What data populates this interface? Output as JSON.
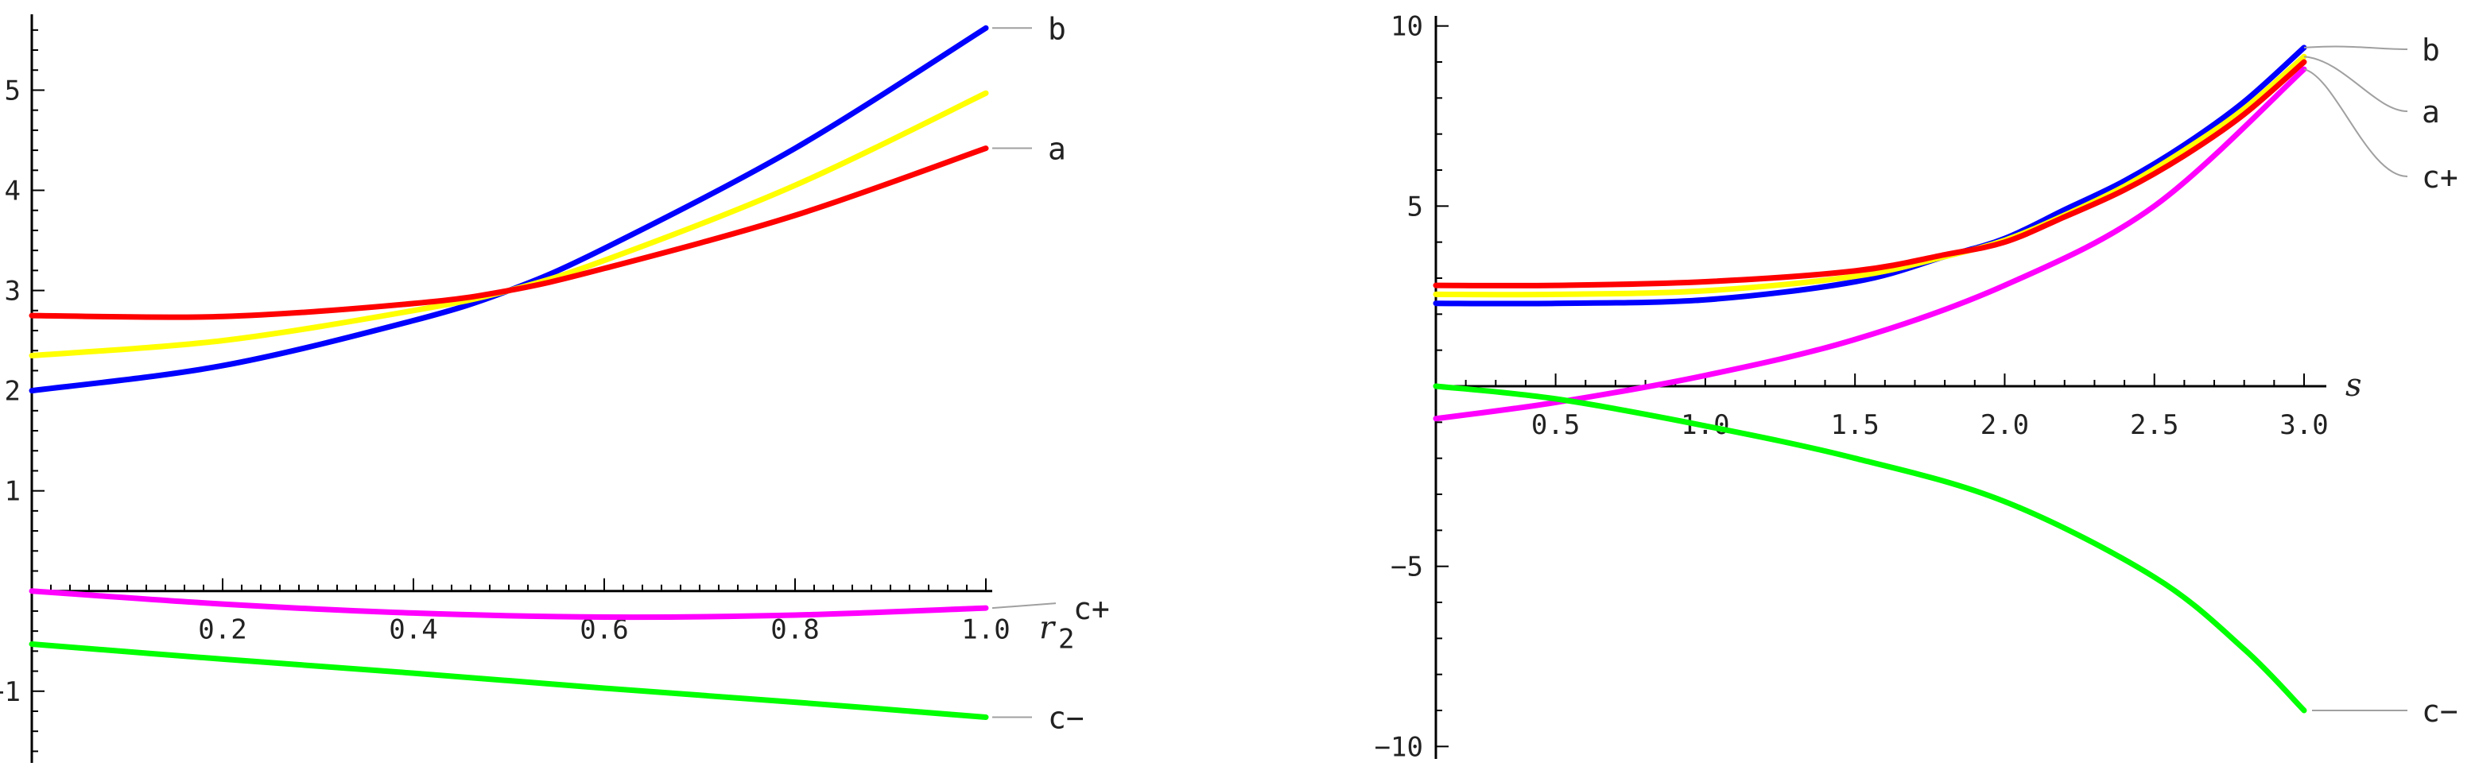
{
  "chart_data": [
    {
      "type": "line",
      "title": "",
      "xlabel": "r",
      "xlabel_sub": "2",
      "ylabel": "",
      "xlim": [
        0,
        1.0
      ],
      "ylim": [
        -1.7,
        5.9
      ],
      "grid": false,
      "x_ticks": [
        "0.2",
        "0.4",
        "0.6",
        "0.8",
        "1.0"
      ],
      "y_ticks": [
        "-1",
        "1",
        "2",
        "3",
        "4",
        "5"
      ],
      "series": [
        {
          "name": "b",
          "color": "#0000ff",
          "x": [
            0,
            0.2,
            0.4,
            0.5,
            0.6,
            0.8,
            1.0
          ],
          "y": [
            2.0,
            2.25,
            2.7,
            3.0,
            3.42,
            4.42,
            5.62
          ]
        },
        {
          "color": "#ffff00",
          "x": [
            0,
            0.2,
            0.4,
            0.5,
            0.6,
            0.8,
            1.0
          ],
          "y": [
            2.35,
            2.5,
            2.8,
            3.0,
            3.3,
            4.05,
            4.97
          ]
        },
        {
          "name": "a",
          "color": "#ff0000",
          "x": [
            0,
            0.2,
            0.4,
            0.5,
            0.6,
            0.8,
            1.0
          ],
          "y": [
            2.75,
            2.74,
            2.87,
            3.0,
            3.22,
            3.75,
            4.42
          ]
        },
        {
          "name": "c+",
          "color": "#ff00ff",
          "x": [
            0,
            0.2,
            0.4,
            0.6,
            0.8,
            1.0
          ],
          "y": [
            0.0,
            -0.13,
            -0.22,
            -0.26,
            -0.24,
            -0.17
          ]
        },
        {
          "name": "c−",
          "color": "#00ff00",
          "x": [
            0,
            0.2,
            0.4,
            0.6,
            0.8,
            1.0
          ],
          "y": [
            -0.53,
            -0.68,
            -0.82,
            -0.97,
            -1.11,
            -1.26
          ]
        }
      ],
      "labels": {
        "b": "b",
        "a": "a",
        "cplus": "c+",
        "cminus": "c−"
      }
    },
    {
      "type": "line",
      "title": "",
      "xlabel": "s",
      "ylabel": "",
      "xlim": [
        0.1,
        3.0
      ],
      "ylim": [
        -10.5,
        10.5
      ],
      "grid": false,
      "x_ticks": [
        "0.5",
        "1.0",
        "1.5",
        "2.0",
        "2.5",
        "3.0"
      ],
      "y_ticks": [
        "10",
        "5",
        "-5",
        "-10"
      ],
      "series": [
        {
          "name": "b",
          "color": "#0000ff",
          "x": [
            0.1,
            0.5,
            1.0,
            1.5,
            1.8,
            2.0,
            2.2,
            2.4,
            2.6,
            2.8,
            3.0
          ],
          "y": [
            2.3,
            2.3,
            2.4,
            2.9,
            3.6,
            4.1,
            4.9,
            5.7,
            6.7,
            7.9,
            9.4
          ]
        },
        {
          "color": "#ffff00",
          "x": [
            0.1,
            0.5,
            1.0,
            1.5,
            1.8,
            2.0,
            2.2,
            2.4,
            2.6,
            2.8,
            3.0
          ],
          "y": [
            2.55,
            2.55,
            2.65,
            3.05,
            3.6,
            4.05,
            4.75,
            5.55,
            6.55,
            7.7,
            9.15
          ]
        },
        {
          "name": "a",
          "color": "#ff0000",
          "x": [
            0.1,
            0.5,
            1.0,
            1.5,
            1.8,
            2.0,
            2.2,
            2.4,
            2.6,
            2.8,
            3.0
          ],
          "y": [
            2.8,
            2.8,
            2.9,
            3.2,
            3.65,
            4.0,
            4.7,
            5.45,
            6.4,
            7.55,
            9.0
          ]
        },
        {
          "name": "c+",
          "color": "#ff00ff",
          "x": [
            0.1,
            0.5,
            1.0,
            1.5,
            2.0,
            2.5,
            3.0
          ],
          "y": [
            -0.9,
            -0.45,
            0.3,
            1.3,
            2.8,
            5.0,
            8.8
          ]
        },
        {
          "name": "c−",
          "color": "#00ff00",
          "x": [
            0.1,
            0.5,
            1.0,
            1.5,
            2.0,
            2.5,
            2.8,
            3.0
          ],
          "y": [
            0.0,
            -0.35,
            -1.1,
            -2.0,
            -3.2,
            -5.3,
            -7.3,
            -9.0
          ]
        }
      ],
      "labels": {
        "b": "b",
        "a": "a",
        "cplus": "c+",
        "cminus": "c−"
      }
    }
  ]
}
